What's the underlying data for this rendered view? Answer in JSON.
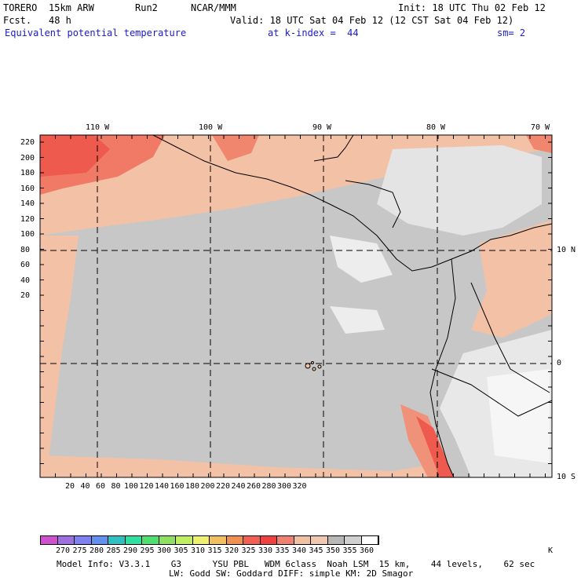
{
  "header": {
    "model": "TORERO",
    "resolution": "15km ARW",
    "run": "Run2",
    "org": "NCAR/MMM",
    "init": "Init: 18 UTC Thu 02 Feb 12",
    "fcst_label": "Fcst.",
    "fcst_value": "48 h",
    "valid": "Valid: 18 UTC Sat 04 Feb 12 (12 CST Sat 04 Feb 12)",
    "field": "Equivalent potential temperature",
    "level": "at k-index =  44",
    "smoothing": "sm= 2"
  },
  "map": {
    "lon_labels": [
      "110 W",
      "100 W",
      "90 W",
      "80 W",
      "70 W"
    ],
    "lat_labels": [
      "10 N",
      "0",
      "10 S"
    ],
    "y_ticks": [
      "220",
      "200",
      "180",
      "160",
      "140",
      "120",
      "100",
      "80",
      "60",
      "40",
      "20"
    ],
    "x_ticks": [
      "20",
      "40",
      "60",
      "80",
      "100",
      "120",
      "140",
      "160",
      "180",
      "200",
      "220",
      "240",
      "260",
      "280",
      "300",
      "320"
    ]
  },
  "colorbar": {
    "unit": "K",
    "labels": [
      "270",
      "275",
      "280",
      "285",
      "290",
      "295",
      "300",
      "305",
      "310",
      "315",
      "320",
      "325",
      "330",
      "335",
      "340",
      "345",
      "350",
      "355",
      "360"
    ],
    "colors": [
      "#d050d0",
      "#a070e0",
      "#8080f0",
      "#6090f0",
      "#30c0c0",
      "#30e0a0",
      "#50e070",
      "#90e060",
      "#c0f060",
      "#f0f070",
      "#f0c060",
      "#f09050",
      "#f06050",
      "#f04040",
      "#f08070",
      "#f0c0a0",
      "#f0c8b0",
      "#b8b8b8",
      "#d0d0d0",
      "#ffffff"
    ]
  },
  "footer": {
    "line1": "Model Info: V3.3.1    G3      YSU PBL   WDM 6class  Noah LSM  15 km,    44 levels,    62 sec",
    "line2": "LW: Godd SW: Goddard DIFF: simple KM: 2D Smagor"
  }
}
